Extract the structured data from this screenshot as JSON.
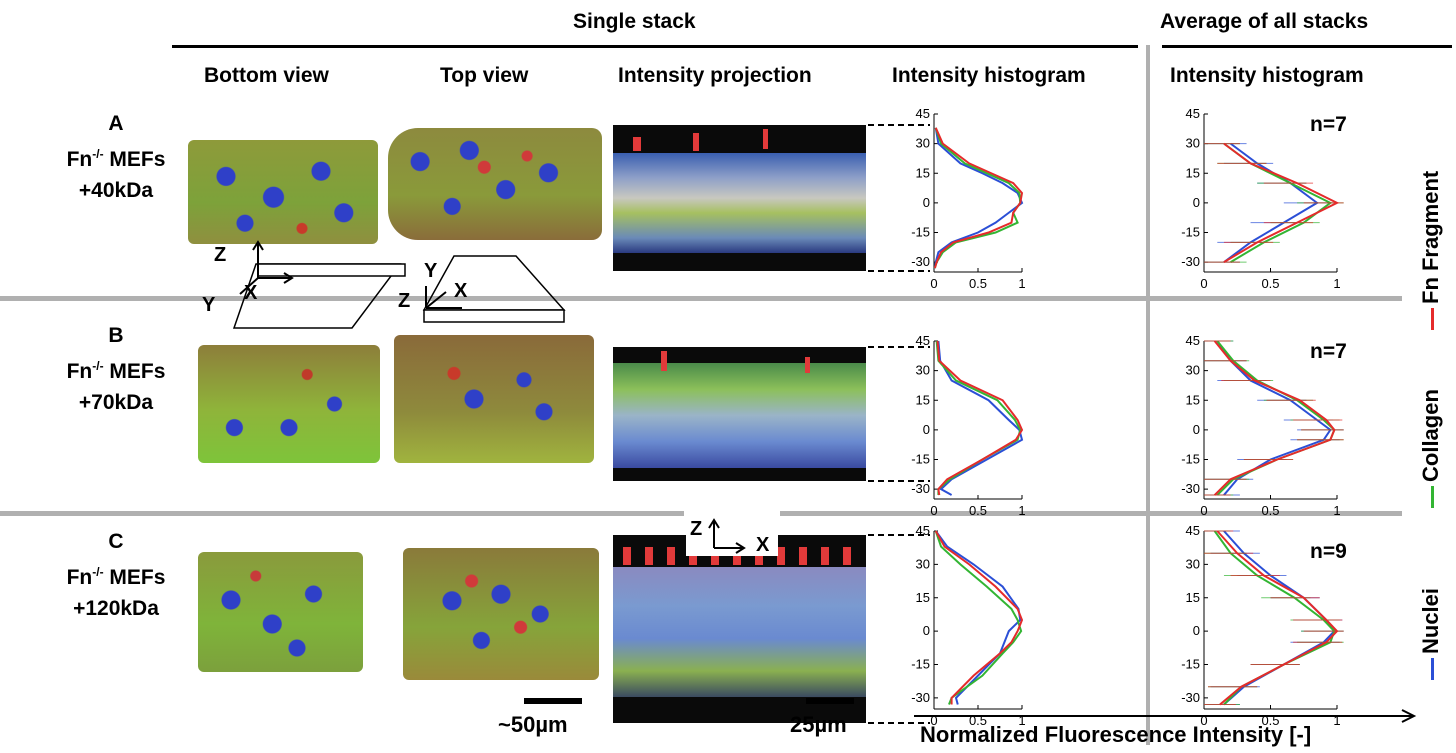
{
  "headers": {
    "single_stack": "Single stack",
    "average_all": "Average of all stacks",
    "bottom_view": "Bottom view",
    "top_view": "Top view",
    "intensity_projection": "Intensity projection",
    "intensity_histogram": "Intensity histogram",
    "intensity_histogram_avg": "Intensity histogram"
  },
  "rows": [
    {
      "letter": "A",
      "cell": "Fn",
      "sup": "-/-",
      "cell2": " MEFs",
      "fragment": "+40kDa",
      "n": "n=7"
    },
    {
      "letter": "B",
      "cell": "Fn",
      "sup": "-/-",
      "cell2": " MEFs",
      "fragment": "+70kDa",
      "n": "n=7"
    },
    {
      "letter": "C",
      "cell": "Fn",
      "sup": "-/-",
      "cell2": " MEFs",
      "fragment": "+120kDa",
      "n": "n=9"
    }
  ],
  "axes_labels": {
    "z": "Z",
    "x": "X",
    "y": "Y"
  },
  "scale_bars": {
    "view": "~50µm",
    "projection": "25µm"
  },
  "x_axis_title": "Normalized Fluorescence Intensity [-]",
  "legend": {
    "fragment": "Fn Fragment",
    "collagen": "Collagen",
    "nuclei": "Nuclei"
  },
  "colors": {
    "fragment": "#e52b2b",
    "collagen": "#33b533",
    "nuclei": "#2b4fd6"
  },
  "chart_data": [
    {
      "type": "line",
      "panel": "A",
      "view": "single stack",
      "xlim": [
        0,
        1
      ],
      "xticks": [
        "0",
        "0.5",
        "1"
      ],
      "yticks": [
        "-30",
        "-15",
        "0",
        "15",
        "30",
        "45"
      ],
      "ylim": [
        -35,
        45
      ],
      "y": [
        38,
        30,
        20,
        15,
        10,
        5,
        0,
        -5,
        -10,
        -15,
        -20,
        -25,
        -30,
        -33
      ],
      "series": [
        {
          "name": "Nuclei",
          "values": [
            0.02,
            0.05,
            0.3,
            0.55,
            0.78,
            0.95,
            1.0,
            0.85,
            0.7,
            0.5,
            0.2,
            0.05,
            0.02,
            0.01
          ]
        },
        {
          "name": "Collagen",
          "values": [
            0.02,
            0.08,
            0.35,
            0.6,
            0.85,
            0.97,
            0.98,
            0.9,
            0.95,
            0.7,
            0.25,
            0.1,
            0.03,
            0.01
          ]
        },
        {
          "name": "Fn Fragment",
          "values": [
            0.02,
            0.1,
            0.4,
            0.65,
            0.9,
            1.0,
            0.98,
            0.9,
            0.88,
            0.62,
            0.22,
            0.08,
            0.03,
            0.01
          ]
        }
      ]
    },
    {
      "type": "line",
      "panel": "B",
      "view": "single stack",
      "xlim": [
        0,
        1
      ],
      "xticks": [
        "0",
        "0.5",
        "1"
      ],
      "yticks": [
        "-30",
        "-15",
        "0",
        "15",
        "30",
        "45"
      ],
      "ylim": [
        -35,
        45
      ],
      "y": [
        45,
        35,
        25,
        15,
        5,
        0,
        -5,
        -15,
        -25,
        -30,
        -33
      ],
      "series": [
        {
          "name": "Nuclei",
          "values": [
            0.05,
            0.07,
            0.2,
            0.62,
            0.85,
            0.97,
            1.0,
            0.6,
            0.2,
            0.08,
            0.2
          ]
        },
        {
          "name": "Collagen",
          "values": [
            0.03,
            0.05,
            0.25,
            0.72,
            0.92,
            0.98,
            0.95,
            0.55,
            0.18,
            0.05,
            0.05
          ]
        },
        {
          "name": "Fn Fragment",
          "values": [
            0.04,
            0.06,
            0.3,
            0.78,
            0.95,
            1.0,
            0.93,
            0.55,
            0.15,
            0.05,
            0.06
          ]
        }
      ]
    },
    {
      "type": "line",
      "panel": "C",
      "view": "single stack",
      "xlim": [
        0,
        1
      ],
      "xticks": [
        "0",
        "0.5",
        "1"
      ],
      "yticks": [
        "-30",
        "-15",
        "0",
        "15",
        "30",
        "45"
      ],
      "ylim": [
        -35,
        45
      ],
      "y": [
        45,
        38,
        30,
        20,
        10,
        5,
        0,
        -5,
        -10,
        -20,
        -30,
        -33
      ],
      "series": [
        {
          "name": "Nuclei",
          "values": [
            0.02,
            0.15,
            0.45,
            0.78,
            0.96,
            0.98,
            0.85,
            0.8,
            0.75,
            0.5,
            0.25,
            0.27
          ]
        },
        {
          "name": "Collagen",
          "values": [
            0.02,
            0.08,
            0.3,
            0.6,
            0.88,
            0.95,
            0.99,
            0.9,
            0.78,
            0.55,
            0.2,
            0.17
          ]
        },
        {
          "name": "Fn Fragment",
          "values": [
            0.02,
            0.12,
            0.4,
            0.7,
            0.95,
            1.0,
            0.95,
            0.88,
            0.75,
            0.45,
            0.2,
            0.2
          ]
        }
      ]
    },
    {
      "type": "line",
      "panel": "A",
      "view": "average of all stacks",
      "xlim": [
        0,
        1
      ],
      "xticks": [
        "0",
        "0.5",
        "1"
      ],
      "yticks": [
        "-30",
        "-15",
        "0",
        "15",
        "30",
        "45"
      ],
      "ylim": [
        -35,
        45
      ],
      "y": [
        30,
        20,
        10,
        0,
        -10,
        -20,
        -30
      ],
      "series": [
        {
          "name": "Nuclei",
          "values": [
            0.2,
            0.4,
            0.65,
            0.85,
            0.6,
            0.35,
            0.15
          ]
        },
        {
          "name": "Collagen",
          "values": [
            0.15,
            0.35,
            0.65,
            0.95,
            0.75,
            0.45,
            0.2
          ]
        },
        {
          "name": "Fn Fragment",
          "values": [
            0.15,
            0.35,
            0.7,
            1.0,
            0.7,
            0.4,
            0.15
          ]
        }
      ]
    },
    {
      "type": "line",
      "panel": "B",
      "view": "average of all stacks",
      "xlim": [
        0,
        1
      ],
      "xticks": [
        "0",
        "0.5",
        "1"
      ],
      "yticks": [
        "-30",
        "-15",
        "0",
        "15",
        "30",
        "45"
      ],
      "ylim": [
        -35,
        45
      ],
      "y": [
        45,
        35,
        25,
        15,
        5,
        0,
        -5,
        -15,
        -25,
        -33
      ],
      "series": [
        {
          "name": "Nuclei",
          "values": [
            0.1,
            0.2,
            0.35,
            0.65,
            0.85,
            0.95,
            0.9,
            0.5,
            0.25,
            0.15
          ]
        },
        {
          "name": "Collagen",
          "values": [
            0.1,
            0.22,
            0.4,
            0.7,
            0.9,
            0.98,
            0.95,
            0.55,
            0.22,
            0.1
          ]
        },
        {
          "name": "Fn Fragment",
          "values": [
            0.08,
            0.2,
            0.38,
            0.72,
            0.92,
            0.98,
            0.95,
            0.55,
            0.2,
            0.08
          ]
        }
      ]
    },
    {
      "type": "line",
      "panel": "C",
      "view": "average of all stacks",
      "xlim": [
        0,
        1
      ],
      "xticks": [
        "0",
        "0.5",
        "1"
      ],
      "yticks": [
        "-30",
        "-15",
        "0",
        "15",
        "30",
        "45"
      ],
      "ylim": [
        -35,
        45
      ],
      "y": [
        45,
        35,
        25,
        15,
        5,
        0,
        -5,
        -15,
        -25,
        -33
      ],
      "series": [
        {
          "name": "Nuclei",
          "values": [
            0.15,
            0.3,
            0.5,
            0.75,
            0.92,
            0.98,
            0.9,
            0.6,
            0.3,
            0.15
          ]
        },
        {
          "name": "Collagen",
          "values": [
            0.08,
            0.2,
            0.4,
            0.68,
            0.9,
            0.98,
            0.95,
            0.6,
            0.28,
            0.15
          ]
        },
        {
          "name": "Fn Fragment",
          "values": [
            0.1,
            0.25,
            0.45,
            0.75,
            0.92,
            1.0,
            0.92,
            0.6,
            0.28,
            0.12
          ]
        }
      ]
    }
  ]
}
